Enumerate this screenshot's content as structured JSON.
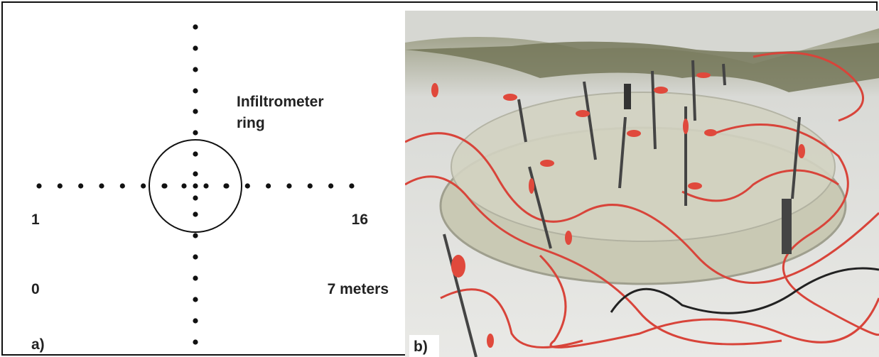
{
  "panel_a": {
    "ring_label": [
      "Infiltrometer",
      "ring"
    ],
    "electrode_first": "1",
    "electrode_last": "16",
    "distance_start": "0",
    "distance_end": "7 meters",
    "panel_label": "a)"
  },
  "panel_b": {
    "panel_label": "b)"
  }
}
